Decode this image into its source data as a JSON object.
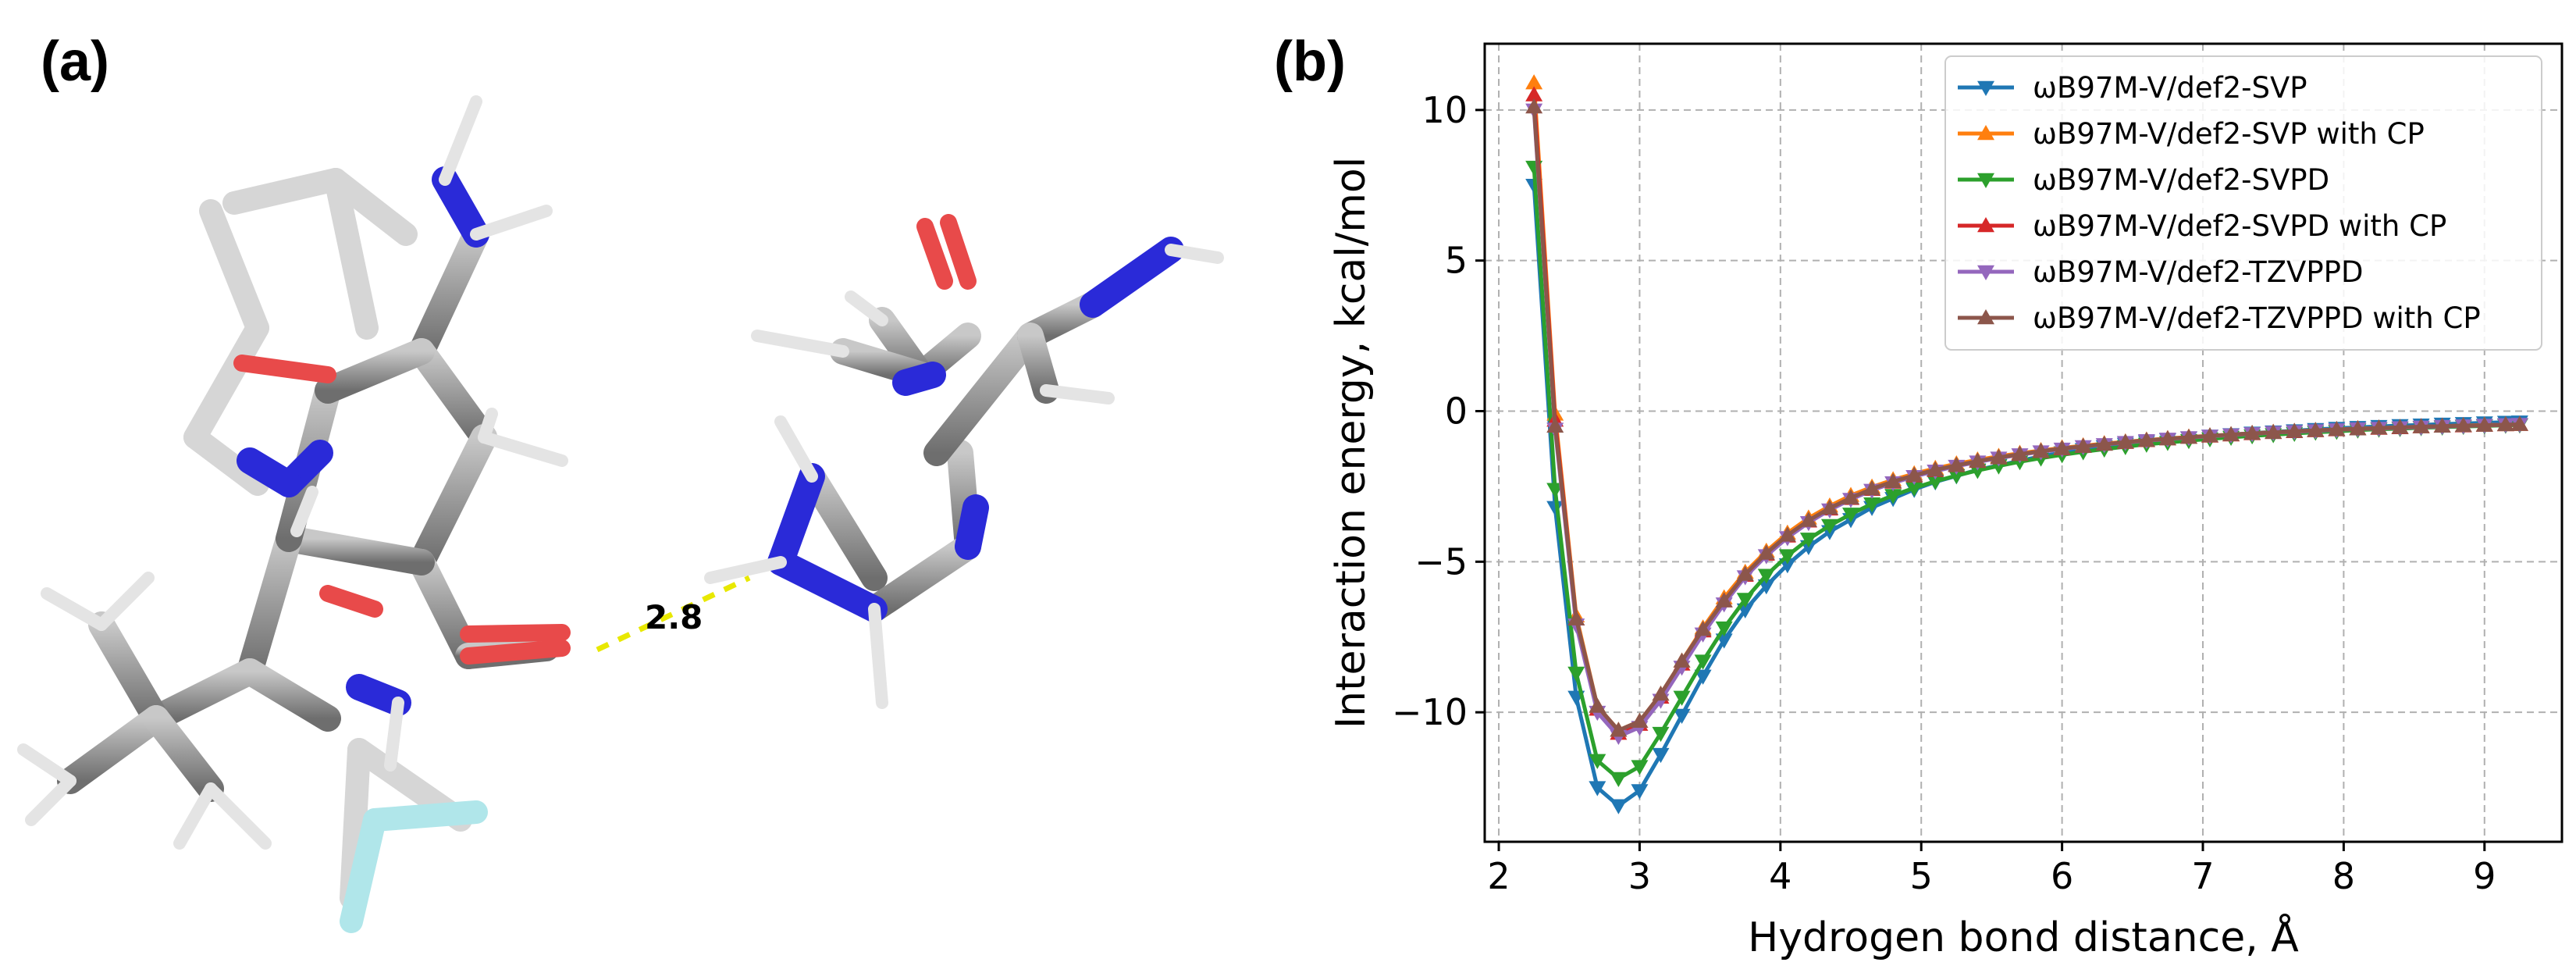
{
  "panels": {
    "a_label": "(a)",
    "b_label": "(b)"
  },
  "molecule": {
    "hbond_distance_label": "2.8"
  },
  "chart_data": {
    "type": "line",
    "xlabel": "Hydrogen bond distance, Å",
    "ylabel": "Interaction energy, kcal/mol",
    "xlim": [
      1.9,
      9.55
    ],
    "ylim": [
      -14.3,
      12.2
    ],
    "xticks": [
      2,
      3,
      4,
      5,
      6,
      7,
      8,
      9
    ],
    "yticks": [
      10,
      5,
      0,
      -5,
      -10
    ],
    "grid": true,
    "legend_position": "top-right",
    "x": [
      2.25,
      2.4,
      2.55,
      2.7,
      2.85,
      3.0,
      3.15,
      3.3,
      3.45,
      3.6,
      3.75,
      3.9,
      4.05,
      4.2,
      4.35,
      4.5,
      4.65,
      4.8,
      4.95,
      5.1,
      5.25,
      5.4,
      5.55,
      5.7,
      5.85,
      6.0,
      6.15,
      6.3,
      6.45,
      6.6,
      6.75,
      6.9,
      7.05,
      7.2,
      7.35,
      7.5,
      7.65,
      7.8,
      7.95,
      8.1,
      8.25,
      8.4,
      8.55,
      8.7,
      8.85,
      9.0,
      9.15,
      9.25
    ],
    "series": [
      {
        "name": "ωB97M-V/def2-SVP",
        "color": "#1f77b4",
        "marker": "triangle-down",
        "values": [
          7.5,
          -3.2,
          -9.5,
          -12.5,
          -13.1,
          -12.6,
          -11.4,
          -10.1,
          -8.8,
          -7.6,
          -6.6,
          -5.8,
          -5.1,
          -4.5,
          -4.0,
          -3.6,
          -3.2,
          -2.9,
          -2.6,
          -2.35,
          -2.15,
          -1.95,
          -1.8,
          -1.65,
          -1.5,
          -1.38,
          -1.28,
          -1.18,
          -1.1,
          -1.02,
          -0.95,
          -0.89,
          -0.83,
          -0.78,
          -0.73,
          -0.69,
          -0.65,
          -0.61,
          -0.57,
          -0.54,
          -0.51,
          -0.48,
          -0.46,
          -0.43,
          -0.41,
          -0.39,
          -0.37,
          -0.36
        ]
      },
      {
        "name": "ωB97M-V/def2-SVP with CP",
        "color": "#ff7f0e",
        "marker": "triangle-up",
        "values": [
          10.9,
          -0.1,
          -6.8,
          -9.8,
          -10.6,
          -10.3,
          -9.4,
          -8.3,
          -7.2,
          -6.2,
          -5.35,
          -4.65,
          -4.05,
          -3.55,
          -3.15,
          -2.8,
          -2.52,
          -2.28,
          -2.08,
          -1.9,
          -1.75,
          -1.62,
          -1.5,
          -1.4,
          -1.31,
          -1.22,
          -1.15,
          -1.08,
          -1.02,
          -0.96,
          -0.91,
          -0.86,
          -0.82,
          -0.78,
          -0.74,
          -0.7,
          -0.67,
          -0.64,
          -0.61,
          -0.58,
          -0.56,
          -0.54,
          -0.52,
          -0.5,
          -0.48,
          -0.46,
          -0.45,
          -0.44
        ]
      },
      {
        "name": "ωB97M-V/def2-SVPD",
        "color": "#2ca02c",
        "marker": "triangle-down",
        "values": [
          8.1,
          -2.6,
          -8.7,
          -11.6,
          -12.2,
          -11.8,
          -10.7,
          -9.5,
          -8.3,
          -7.2,
          -6.25,
          -5.45,
          -4.8,
          -4.25,
          -3.8,
          -3.42,
          -3.08,
          -2.8,
          -2.55,
          -2.33,
          -2.14,
          -1.97,
          -1.82,
          -1.68,
          -1.56,
          -1.45,
          -1.35,
          -1.26,
          -1.18,
          -1.1,
          -1.04,
          -0.98,
          -0.92,
          -0.87,
          -0.82,
          -0.78,
          -0.74,
          -0.7,
          -0.67,
          -0.63,
          -0.6,
          -0.58,
          -0.55,
          -0.53,
          -0.51,
          -0.49,
          -0.47,
          -0.46
        ]
      },
      {
        "name": "ωB97M-V/def2-SVPD with CP",
        "color": "#d62728",
        "marker": "triangle-up",
        "values": [
          10.5,
          -0.3,
          -6.9,
          -9.9,
          -10.7,
          -10.4,
          -9.5,
          -8.4,
          -7.3,
          -6.3,
          -5.45,
          -4.75,
          -4.15,
          -3.65,
          -3.25,
          -2.9,
          -2.6,
          -2.36,
          -2.15,
          -1.97,
          -1.81,
          -1.67,
          -1.55,
          -1.44,
          -1.34,
          -1.25,
          -1.17,
          -1.1,
          -1.04,
          -0.98,
          -0.92,
          -0.87,
          -0.83,
          -0.79,
          -0.75,
          -0.71,
          -0.68,
          -0.65,
          -0.62,
          -0.59,
          -0.57,
          -0.55,
          -0.52,
          -0.5,
          -0.49,
          -0.47,
          -0.45,
          -0.44
        ]
      },
      {
        "name": "ωB97M-V/def2-TZVPPD",
        "color": "#9467bd",
        "marker": "triangle-down",
        "values": [
          10.0,
          -0.6,
          -7.1,
          -10.0,
          -10.8,
          -10.5,
          -9.6,
          -8.5,
          -7.4,
          -6.4,
          -5.5,
          -4.8,
          -4.2,
          -3.7,
          -3.28,
          -2.93,
          -2.63,
          -2.38,
          -2.17,
          -1.99,
          -1.83,
          -1.69,
          -1.56,
          -1.45,
          -1.35,
          -1.26,
          -1.18,
          -1.11,
          -1.04,
          -0.98,
          -0.93,
          -0.88,
          -0.83,
          -0.79,
          -0.75,
          -0.71,
          -0.68,
          -0.65,
          -0.62,
          -0.59,
          -0.57,
          -0.55,
          -0.53,
          -0.51,
          -0.49,
          -0.47,
          -0.45,
          -0.44
        ]
      },
      {
        "name": "ωB97M-V/def2-TZVPPD with CP",
        "color": "#8c564b",
        "marker": "triangle-up",
        "values": [
          10.1,
          -0.5,
          -6.9,
          -9.8,
          -10.6,
          -10.3,
          -9.4,
          -8.3,
          -7.25,
          -6.3,
          -5.42,
          -4.72,
          -4.12,
          -3.63,
          -3.22,
          -2.88,
          -2.58,
          -2.34,
          -2.13,
          -1.95,
          -1.8,
          -1.66,
          -1.54,
          -1.43,
          -1.33,
          -1.24,
          -1.17,
          -1.1,
          -1.03,
          -0.97,
          -0.92,
          -0.87,
          -0.82,
          -0.78,
          -0.74,
          -0.71,
          -0.67,
          -0.64,
          -0.61,
          -0.59,
          -0.56,
          -0.54,
          -0.52,
          -0.5,
          -0.48,
          -0.47,
          -0.45,
          -0.44
        ]
      }
    ]
  }
}
